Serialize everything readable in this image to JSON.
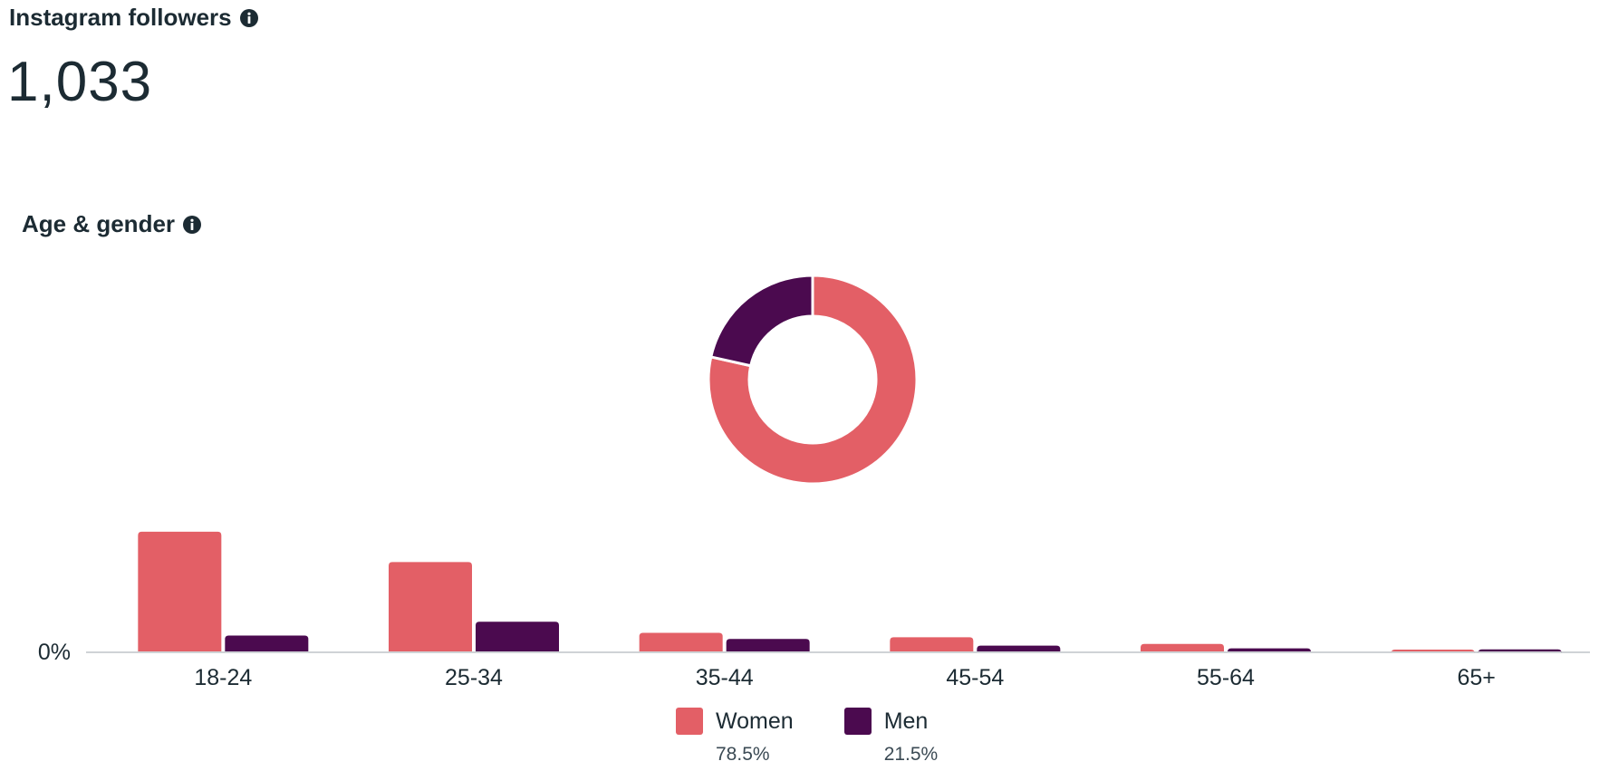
{
  "header": {
    "title": "Instagram followers",
    "count": "1,033",
    "info_icon": "info-icon"
  },
  "section": {
    "title": "Age & gender",
    "info_icon": "info-icon"
  },
  "colors": {
    "women": "#e35f66",
    "men": "#4b0a4f",
    "baseline": "#cfd3d6",
    "text": "#1c2b33"
  },
  "chart_data": [
    {
      "type": "pie",
      "variant": "donut",
      "categories": [
        "Women",
        "Men"
      ],
      "values": [
        78.5,
        21.5
      ],
      "value_labels": [
        "78.5%",
        "21.5%"
      ]
    },
    {
      "type": "bar",
      "categories": [
        "18-24",
        "25-34",
        "35-44",
        "45-54",
        "55-64",
        "65+"
      ],
      "series": [
        {
          "name": "Women",
          "values": [
            35.5,
            26.5,
            5.5,
            4.2,
            2.2,
            0.5
          ]
        },
        {
          "name": "Men",
          "values": [
            4.7,
            8.8,
            3.7,
            1.7,
            0.9,
            0.6
          ]
        }
      ],
      "ytick_labels": [
        "0%"
      ],
      "ylim": [
        0,
        36
      ],
      "grid": false,
      "legend_placement": "bottom-center"
    }
  ]
}
